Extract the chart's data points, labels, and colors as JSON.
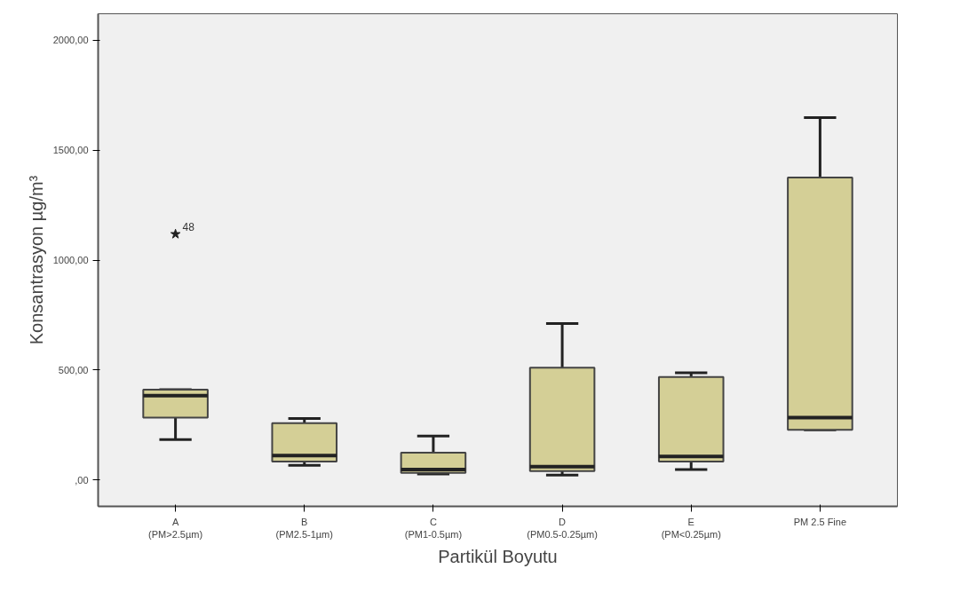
{
  "chart_data": {
    "type": "box",
    "xlabel": "Partikül Boyutu",
    "ylabel": "Konsantrasyon µg/m³",
    "categories": [
      "A\n(PM>2.5µm)",
      "B\n(PM2.5-1µm)",
      "C\n(PM1-0.5µm)",
      "D\n(PM0.5-0.25µm)",
      "E\n(PM<0.25µm)",
      "PM 2.5 Fine"
    ],
    "color": "#d4cf96",
    "boxes": [
      {
        "low": 184,
        "q1": 284,
        "median": 384,
        "q3": 411,
        "high": 411,
        "outliers": [
          1118
        ]
      },
      {
        "low": 67,
        "q1": 84,
        "median": 111,
        "q3": 258,
        "high": 280
      },
      {
        "low": 27,
        "q1": 32,
        "median": 48,
        "q3": 124,
        "high": 200
      },
      {
        "low": 22,
        "q1": 40,
        "median": 61,
        "q3": 511,
        "high": 711
      },
      {
        "low": 48,
        "q1": 84,
        "median": 107,
        "q3": 468,
        "high": 487
      },
      {
        "low": 228,
        "q1": 228,
        "median": 284,
        "q3": 1375,
        "high": 1648
      }
    ],
    "marker": "star",
    "annotations": [
      "48"
    ],
    "ylim": [
      -120,
      2120
    ],
    "yticks": [
      {
        "value": 0,
        "label": ",00"
      },
      {
        "value": 500,
        "label": "500,00"
      },
      {
        "value": 1000,
        "label": "1000,00"
      },
      {
        "value": 1500,
        "label": "1500,00"
      },
      {
        "value": 2000,
        "label": "2000,00"
      }
    ],
    "grid": false
  }
}
